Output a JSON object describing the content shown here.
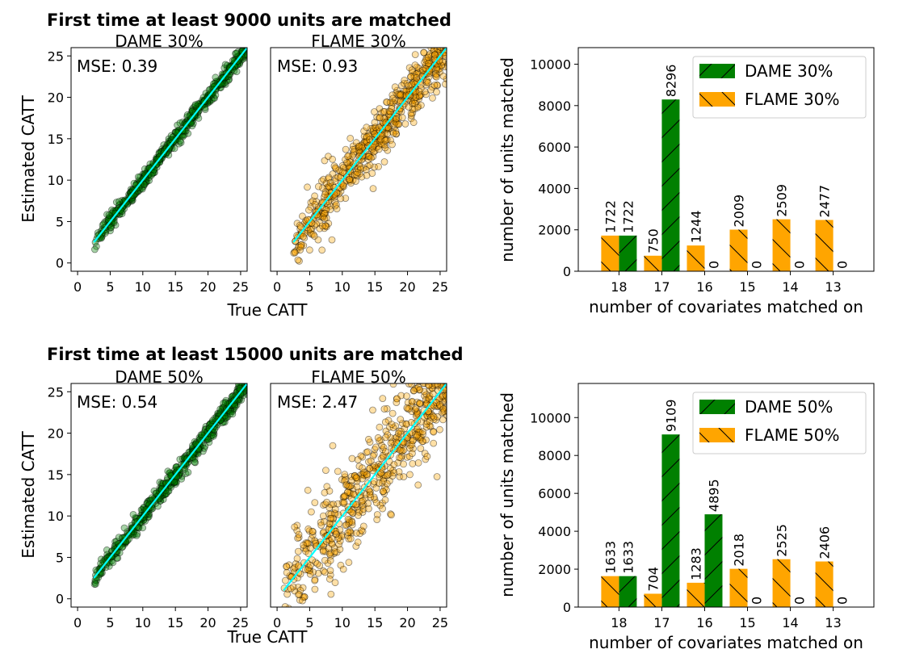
{
  "chart_data": [
    {
      "type": "scatter",
      "group_title": "First time at least 9000 units are matched",
      "title": "DAME 30%",
      "xlabel": "True CATT",
      "ylabel": "Estimated CATT",
      "xlim": [
        -1,
        26
      ],
      "ylim": [
        -1,
        26
      ],
      "xticks": [
        0,
        5,
        10,
        15,
        20,
        25
      ],
      "yticks": [
        0,
        5,
        10,
        15,
        20,
        25
      ],
      "annotation": "MSE: 0.39",
      "marker_color": "#008000",
      "line_color": "#00ffff",
      "x_range": [
        2.5,
        27
      ],
      "spread": 0.5
    },
    {
      "type": "scatter",
      "title": "FLAME 30%",
      "xlabel": "",
      "ylabel": "",
      "xlim": [
        -1,
        26
      ],
      "ylim": [
        -1,
        26
      ],
      "xticks": [
        0,
        5,
        10,
        15,
        20,
        25
      ],
      "yticks": [],
      "annotation": "MSE: 0.93",
      "marker_color": "#ffa500",
      "line_color": "#00ffff",
      "x_range": [
        2.5,
        27
      ],
      "spread": 1.6
    },
    {
      "type": "bar",
      "title": "",
      "xlabel": "number of covariates matched on",
      "ylabel": "number of units matched",
      "categories": [
        "18",
        "17",
        "16",
        "15",
        "14",
        "13"
      ],
      "ylim": [
        0,
        10800
      ],
      "yticks": [
        0,
        2000,
        4000,
        6000,
        8000,
        10000
      ],
      "series": [
        {
          "name": "DAME 30%",
          "values": [
            1722,
            8296,
            0,
            0,
            0,
            0
          ],
          "color": "#008000",
          "hatch": "fwd"
        },
        {
          "name": "FLAME 30%",
          "values": [
            1722,
            750,
            1244,
            2009,
            2509,
            2477
          ],
          "color": "#ffa500",
          "hatch": "back"
        }
      ]
    },
    {
      "type": "scatter",
      "group_title": "First time at least 15000 units are matched",
      "title": "DAME 50%",
      "xlabel": "True CATT",
      "ylabel": "Estimated CATT",
      "xlim": [
        -1,
        26
      ],
      "ylim": [
        -1,
        26
      ],
      "xticks": [
        0,
        5,
        10,
        15,
        20,
        25
      ],
      "yticks": [
        0,
        5,
        10,
        15,
        20,
        25
      ],
      "annotation": "MSE: 0.54",
      "marker_color": "#008000",
      "line_color": "#00ffff",
      "x_range": [
        2.5,
        27
      ],
      "spread": 0.6
    },
    {
      "type": "scatter",
      "title": "FLAME 50%",
      "xlabel": "",
      "ylabel": "",
      "xlim": [
        -1,
        26
      ],
      "ylim": [
        -1,
        26
      ],
      "xticks": [
        0,
        5,
        10,
        15,
        20,
        25
      ],
      "yticks": [],
      "annotation": "MSE: 2.47",
      "marker_color": "#ffa500",
      "line_color": "#00ffff",
      "x_range": [
        1,
        27
      ],
      "spread": 2.8
    },
    {
      "type": "bar",
      "title": "",
      "xlabel": "number of covariates matched on",
      "ylabel": "number of units matched",
      "categories": [
        "18",
        "17",
        "16",
        "15",
        "14",
        "13"
      ],
      "ylim": [
        0,
        11800
      ],
      "yticks": [
        0,
        2000,
        4000,
        6000,
        8000,
        10000
      ],
      "series": [
        {
          "name": "DAME 50%",
          "values": [
            1633,
            9109,
            4895,
            0,
            0,
            0
          ],
          "color": "#008000",
          "hatch": "fwd"
        },
        {
          "name": "FLAME 50%",
          "values": [
            1633,
            704,
            1283,
            2018,
            2525,
            2406
          ],
          "color": "#ffa500",
          "hatch": "back"
        }
      ]
    }
  ]
}
